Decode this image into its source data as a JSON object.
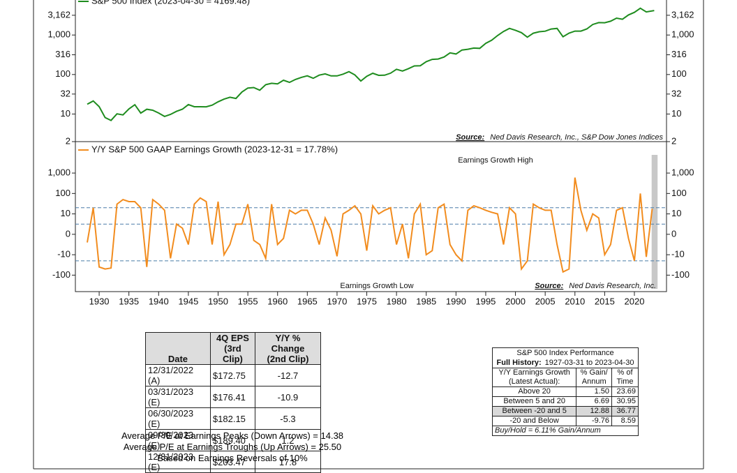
{
  "chart_data": [
    {
      "type": "line",
      "scale": "log",
      "series": [
        {
          "name": "S&P 500 Index (2023-04-30 = 4169.48)",
          "color": "#1e8c1e",
          "values": [
            17.66,
            21.45,
            15.34,
            8.12,
            6.89,
            10.1,
            9.5,
            13.43,
            17.18,
            10.55,
            13.21,
            12.49,
            10.58,
            8.69,
            9.77,
            11.67,
            13.28,
            17.36,
            15.3,
            15.3,
            15.2,
            16.76,
            20.41,
            23.77,
            26.57,
            24.81,
            35.98,
            45.48,
            46.67,
            39.99,
            55.21,
            59.89,
            58.11,
            71.55,
            63.1,
            75.02,
            84.75,
            92.43,
            80.33,
            96.47,
            103.86,
            92.06,
            92.15,
            102.09,
            118.05,
            97.55,
            68.56,
            90.19,
            107.46,
            95.1,
            96.11,
            107.94,
            135.76,
            122.55,
            140.64,
            164.93,
            167.24,
            211.28,
            242.17,
            247.08,
            277.72,
            353.4,
            330.22,
            417.09,
            435.71,
            466.45,
            459.27,
            615.93,
            740.74,
            970.43,
            1229.23,
            1469.25,
            1320.28,
            1148.08,
            879.82,
            1111.92,
            1211.92,
            1248.29,
            1418.3,
            1468.36,
            903.25,
            1115.1,
            1257.64,
            1257.6,
            1426.19,
            1848.36,
            2058.9,
            2043.94,
            2238.83,
            2673.61,
            2506.85,
            3230.78,
            3756.07,
            4766.18,
            3839.5,
            4169.48
          ]
        }
      ],
      "x": [
        1928,
        1929,
        1930,
        1931,
        1932,
        1933,
        1934,
        1935,
        1936,
        1937,
        1938,
        1939,
        1940,
        1941,
        1942,
        1943,
        1944,
        1945,
        1946,
        1947,
        1948,
        1949,
        1950,
        1951,
        1952,
        1953,
        1954,
        1955,
        1956,
        1957,
        1958,
        1959,
        1960,
        1961,
        1962,
        1963,
        1964,
        1965,
        1966,
        1967,
        1968,
        1969,
        1970,
        1971,
        1972,
        1973,
        1974,
        1975,
        1976,
        1977,
        1978,
        1979,
        1980,
        1981,
        1982,
        1983,
        1984,
        1985,
        1986,
        1987,
        1988,
        1989,
        1990,
        1991,
        1992,
        1993,
        1994,
        1995,
        1996,
        1997,
        1998,
        1999,
        2000,
        2001,
        2002,
        2003,
        2004,
        2005,
        2006,
        2007,
        2008,
        2009,
        2010,
        2011,
        2012,
        2013,
        2014,
        2015,
        2016,
        2017,
        2018,
        2019,
        2020,
        2021,
        2022,
        2023.33
      ],
      "xlim": [
        1926,
        2025.4
      ],
      "ylim": [
        2,
        7700
      ],
      "yticks": [
        {
          "value": 3162,
          "label": "3,162"
        },
        {
          "value": 1000,
          "label": "1,000"
        },
        316,
        100,
        32,
        10,
        2
      ],
      "source_label": "Source:",
      "source": "Ned Davis Research, Inc., S&P Dow Jones Indices"
    },
    {
      "type": "line",
      "scale": "symlog",
      "series": [
        {
          "name": "Y/Y S&P 500 GAAP Earnings Growth (2023-12-31 = 17.78%)",
          "color": "#f28c1e",
          "values": [
            -4,
            20,
            -40,
            -50,
            -45,
            30,
            50,
            40,
            40,
            20,
            -40,
            50,
            30,
            15,
            -15,
            5,
            3,
            -5,
            30,
            60,
            40,
            -5,
            40,
            -10,
            -5,
            5,
            5,
            30,
            -3,
            -5,
            -15,
            30,
            -5,
            -2,
            15,
            10,
            15,
            15,
            5,
            -5,
            8,
            2,
            -12,
            10,
            15,
            25,
            10,
            -8,
            25,
            10,
            15,
            20,
            -5,
            5,
            -15,
            10,
            30,
            -10,
            -8,
            20,
            30,
            -5,
            -10,
            -20,
            15,
            25,
            20,
            15,
            12,
            10,
            -5,
            20,
            10,
            -50,
            -20,
            30,
            20,
            15,
            15,
            -5,
            -70,
            -50,
            600,
            15,
            2,
            10,
            8,
            -10,
            -5,
            15,
            20,
            -2,
            -20,
            100,
            -12.7,
            17.78
          ]
        }
      ],
      "x": [
        1928,
        1929,
        1930,
        1931,
        1932,
        1933,
        1934,
        1935,
        1936,
        1937,
        1938,
        1939,
        1940,
        1941,
        1942,
        1943,
        1944,
        1945,
        1946,
        1947,
        1948,
        1949,
        1950,
        1951,
        1952,
        1953,
        1954,
        1955,
        1956,
        1957,
        1958,
        1959,
        1960,
        1961,
        1962,
        1963,
        1964,
        1965,
        1966,
        1967,
        1968,
        1969,
        1970,
        1971,
        1972,
        1973,
        1974,
        1975,
        1976,
        1977,
        1978,
        1979,
        1980,
        1981,
        1982,
        1983,
        1984,
        1985,
        1986,
        1987,
        1988,
        1989,
        1990,
        1991,
        1992,
        1993,
        1994,
        1995,
        1996,
        1997,
        1998,
        1999,
        2000,
        2001,
        2002,
        2003,
        2004,
        2005,
        2006,
        2007,
        2008,
        2009,
        2010,
        2011,
        2012,
        2013,
        2014,
        2015,
        2016,
        2017,
        2018,
        2019,
        2020,
        2021,
        2022,
        2023
      ],
      "xlim": [
        1926,
        2025.4
      ],
      "xticks": [
        1930,
        1935,
        1940,
        1945,
        1950,
        1955,
        1960,
        1965,
        1970,
        1975,
        1980,
        1985,
        1990,
        1995,
        2000,
        2005,
        2010,
        2015,
        2020
      ],
      "ylim": [
        -400,
        20000
      ],
      "yticks": [
        {
          "value": 1000,
          "label": "1,000"
        },
        100,
        10,
        0,
        -10,
        -100
      ],
      "reference_lines": [
        20,
        5,
        -20
      ],
      "reference_color": "#4a7ca8",
      "highlight_x": [
        2022.9,
        2023.9
      ],
      "annotations": [
        "Earnings Growth High",
        "Earnings Growth Low"
      ],
      "source_label": "Source:",
      "source": "Ned Davis Research, Inc."
    }
  ],
  "eps_table": {
    "columns": [
      [
        "Date"
      ],
      [
        "4Q EPS",
        "(3rd Clip)"
      ],
      [
        "Y/Y % Change",
        "(2nd Clip)"
      ]
    ],
    "rows": [
      [
        "12/31/2022 (A)",
        "$172.75",
        "-12.7"
      ],
      [
        "03/31/2023 (E)",
        "$176.41",
        "-10.9"
      ],
      [
        "06/30/2023 (E)",
        "$182.15",
        "-5.3"
      ],
      [
        "09/30/2023 (E)",
        "$189.40",
        "1.2"
      ],
      [
        "12/31/2023 (E)",
        "$203.47",
        "17.8"
      ]
    ]
  },
  "notes": [
    "Average P/E at Earnings Peaks (Down Arrows) = 14.38",
    "Average P/E at Earnings Troughs (Up Arrows) = 25.50",
    "Based on Earnings Reversals of 10%"
  ],
  "performance_table": {
    "title": "S&P 500 Index Performance",
    "history_label": "Full History:",
    "history_range": "1927-03-31 to 2023-04-30",
    "columns": [
      [
        "Y/Y Earnings Growth",
        "(Latest Actual):"
      ],
      [
        "% Gain/",
        "Annum"
      ],
      [
        "% of",
        "Time"
      ]
    ],
    "rows": [
      [
        "Above 20",
        "1.50",
        "23.69"
      ],
      [
        "Between 5 and 20",
        "6.69",
        "30.95"
      ],
      [
        "Between -20 and 5",
        "12.88",
        "36.77"
      ],
      [
        "-20 and Below",
        "-9.76",
        "8.59"
      ]
    ],
    "highlight_row": 2,
    "footer": "Buy/Hold = 6.11% Gain/Annum"
  }
}
